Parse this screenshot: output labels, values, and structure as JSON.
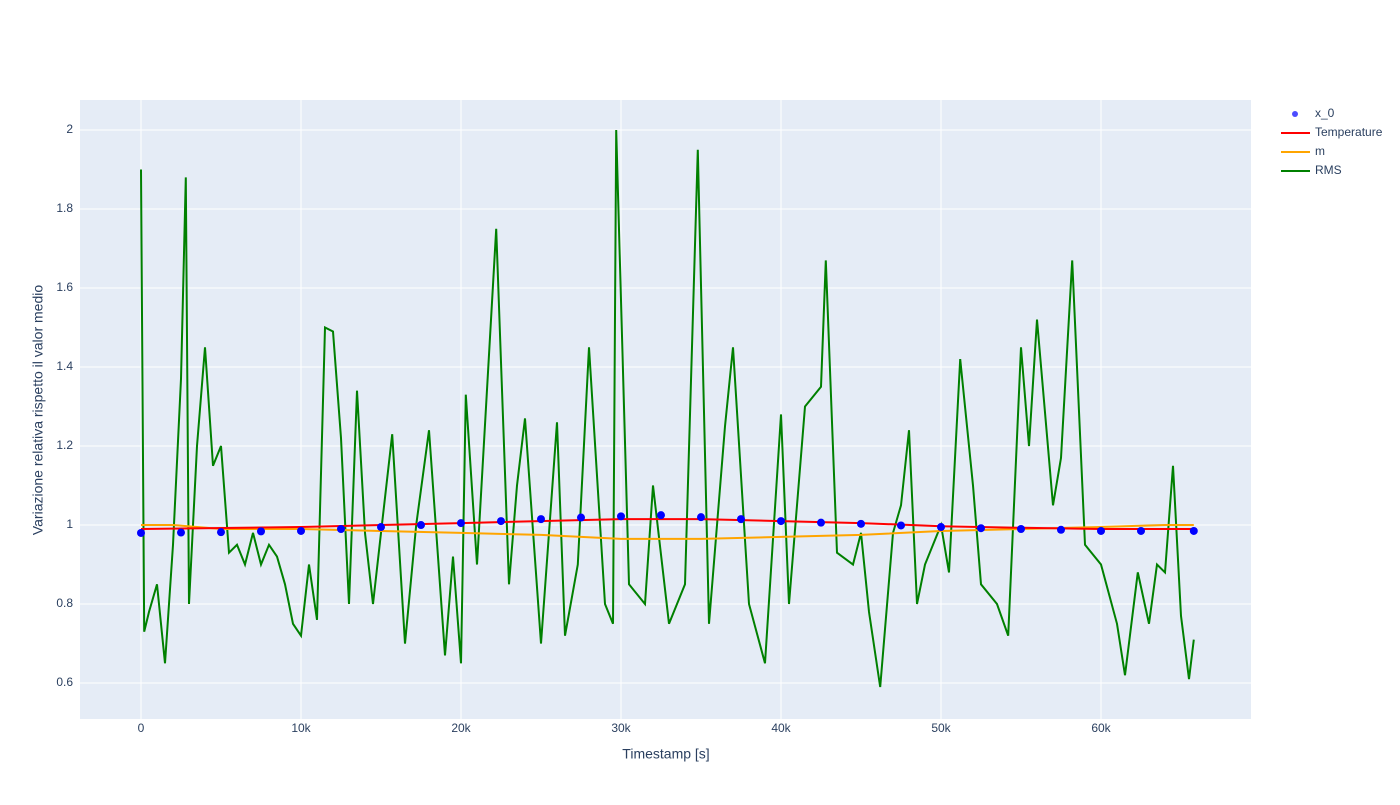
{
  "chart_data": {
    "type": "line",
    "x_label": "Timestamp [s]",
    "y_label": "Variazione relativa rispetto il valor medio",
    "xlim": [
      -3812,
      69375
    ],
    "ylim": [
      0.509,
      2.076
    ],
    "xticks": [
      {
        "value": 0,
        "label": "0"
      },
      {
        "value": 10000,
        "label": "10k"
      },
      {
        "value": 20000,
        "label": "20k"
      },
      {
        "value": 30000,
        "label": "30k"
      },
      {
        "value": 40000,
        "label": "40k"
      },
      {
        "value": 50000,
        "label": "50k"
      },
      {
        "value": 60000,
        "label": "60k"
      }
    ],
    "yticks": [
      0.6,
      0.8,
      1,
      1.2,
      1.4,
      1.6,
      1.8,
      2
    ],
    "grid": true,
    "legend": "right",
    "series": [
      {
        "name": "x_0",
        "color": "#0000ff",
        "mode": "markers",
        "x": [
          0,
          2500,
          5000,
          7500,
          10000,
          12500,
          15000,
          17500,
          20000,
          22500,
          25000,
          27500,
          30000,
          32500,
          35000,
          37500,
          40000,
          42500,
          45000,
          47500,
          50000,
          52500,
          55000,
          57500,
          60000,
          62500,
          65800
        ],
        "values": [
          0.98,
          0.981,
          0.982,
          0.984,
          0.985,
          0.99,
          0.995,
          1.0,
          1.005,
          1.01,
          1.015,
          1.019,
          1.022,
          1.025,
          1.02,
          1.015,
          1.01,
          1.006,
          1.003,
          0.999,
          0.995,
          0.992,
          0.99,
          0.988,
          0.985,
          0.985,
          0.985
        ]
      },
      {
        "name": "Temperature",
        "color": "#ff0000",
        "mode": "lines",
        "x": [
          0,
          10000,
          20000,
          30000,
          35000,
          40000,
          45000,
          50000,
          55000,
          60000,
          65800
        ],
        "values": [
          0.99,
          0.995,
          1.005,
          1.015,
          1.015,
          1.01,
          1.005,
          0.997,
          0.993,
          0.99,
          0.99
        ]
      },
      {
        "name": "m",
        "color": "#ffa500",
        "mode": "lines",
        "x": [
          0,
          2000,
          5000,
          10000,
          15000,
          20000,
          25000,
          30000,
          35000,
          40000,
          45000,
          50000,
          55000,
          60000,
          64000,
          65800
        ],
        "values": [
          1.0,
          1.0,
          0.99,
          0.99,
          0.985,
          0.98,
          0.975,
          0.965,
          0.965,
          0.97,
          0.975,
          0.985,
          0.99,
          0.995,
          1.0,
          1.0
        ]
      },
      {
        "name": "RMS",
        "color": "#008000",
        "mode": "lines",
        "x": [
          0,
          200,
          500,
          1000,
          1500,
          2000,
          2500,
          2800,
          3000,
          3500,
          4000,
          4500,
          5000,
          5500,
          6000,
          6500,
          7000,
          7500,
          8000,
          8500,
          9000,
          9500,
          10000,
          10500,
          11000,
          11500,
          12000,
          12500,
          13000,
          13500,
          14000,
          14500,
          15000,
          15700,
          16500,
          17200,
          18000,
          19000,
          19500,
          20000,
          20300,
          21000,
          22200,
          23000,
          23500,
          24000,
          25000,
          26000,
          26500,
          27300,
          28000,
          29000,
          29500,
          29700,
          30500,
          31500,
          32000,
          33000,
          34000,
          34800,
          35500,
          36500,
          37000,
          38000,
          39000,
          40000,
          40500,
          41500,
          42500,
          42800,
          43500,
          44500,
          45000,
          45500,
          46200,
          47000,
          47500,
          48000,
          48500,
          49000,
          50000,
          50500,
          51200,
          52000,
          52500,
          53500,
          54200,
          55000,
          55500,
          56000,
          57000,
          57500,
          58200,
          59000,
          60000,
          61000,
          61500,
          62300,
          63000,
          63500,
          64000,
          64500,
          65000,
          65500,
          65800
        ],
        "values": [
          1.9,
          0.73,
          0.78,
          0.85,
          0.65,
          0.95,
          1.37,
          1.88,
          0.8,
          1.2,
          1.45,
          1.15,
          1.2,
          0.93,
          0.95,
          0.9,
          0.98,
          0.9,
          0.95,
          0.92,
          0.85,
          0.75,
          0.72,
          0.9,
          0.76,
          1.5,
          1.49,
          1.22,
          0.8,
          1.34,
          0.98,
          0.8,
          0.98,
          1.23,
          0.7,
          1.0,
          1.24,
          0.67,
          0.92,
          0.65,
          1.33,
          0.9,
          1.75,
          0.85,
          1.1,
          1.27,
          0.7,
          1.26,
          0.72,
          0.9,
          1.45,
          0.8,
          0.75,
          2.0,
          0.85,
          0.8,
          1.1,
          0.75,
          0.85,
          1.95,
          0.75,
          1.25,
          1.45,
          0.8,
          0.65,
          1.28,
          0.8,
          1.3,
          1.35,
          1.67,
          0.93,
          0.9,
          0.98,
          0.78,
          0.59,
          0.98,
          1.05,
          1.24,
          0.8,
          0.9,
          1.0,
          0.88,
          1.42,
          1.1,
          0.85,
          0.8,
          0.72,
          1.45,
          1.2,
          1.52,
          1.05,
          1.17,
          1.67,
          0.95,
          0.9,
          0.75,
          0.62,
          0.88,
          0.75,
          0.9,
          0.88,
          1.15,
          0.77,
          0.61,
          0.71
        ]
      }
    ]
  }
}
